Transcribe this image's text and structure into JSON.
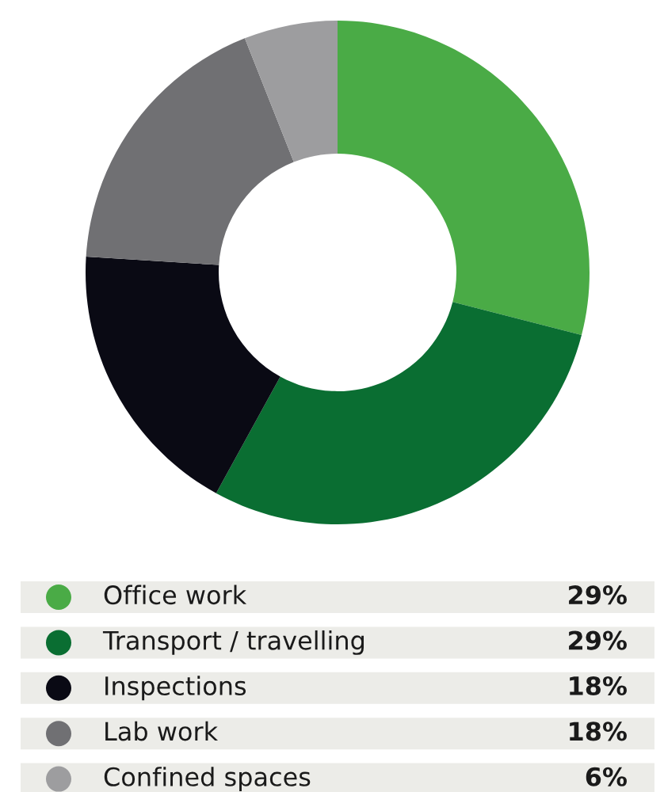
{
  "chart_data": {
    "type": "donut",
    "categories": [
      "Office work",
      "Transport / travelling",
      "Inspections",
      "Lab work",
      "Confined spaces"
    ],
    "values": [
      29,
      29,
      18,
      18,
      6
    ],
    "colors": [
      "#4aab46",
      "#0a6e32",
      "#0a0a14",
      "#707073",
      "#9d9d9f"
    ],
    "value_labels": [
      "29%",
      "29%",
      "18%",
      "18%",
      "6%"
    ],
    "legend": "bottom"
  }
}
